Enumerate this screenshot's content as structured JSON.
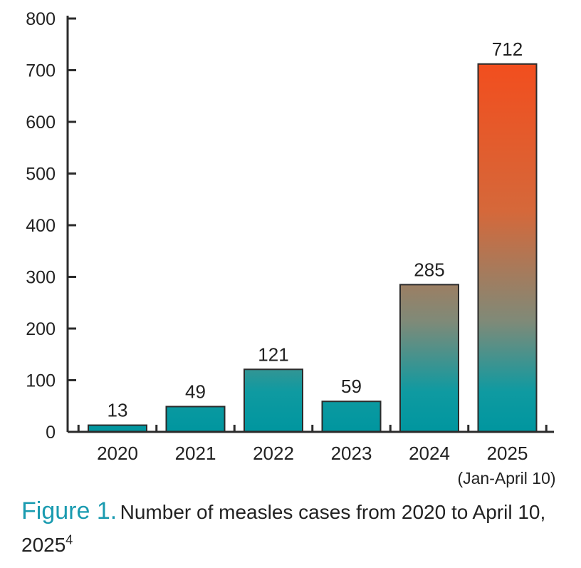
{
  "chart_data": {
    "type": "bar",
    "categories": [
      "2020",
      "2021",
      "2022",
      "2023",
      "2024",
      "2025"
    ],
    "category_sublabels": [
      "",
      "",
      "",
      "",
      "",
      "(Jan-April 10)"
    ],
    "values": [
      13,
      49,
      121,
      59,
      285,
      712
    ],
    "data_labels": [
      "13",
      "49",
      "121",
      "59",
      "285",
      "712"
    ],
    "ylim": [
      0,
      800
    ],
    "yticks": [
      0,
      100,
      200,
      300,
      400,
      500,
      600,
      700,
      800
    ],
    "xlabel": "",
    "ylabel": "",
    "grid": false,
    "colors": {
      "low": "#00969f",
      "high": "#f24e1e"
    }
  },
  "caption": {
    "label": "Figure 1.",
    "text": "Number of measles cases from 2020 to April 10, 2025",
    "superscript": "4"
  }
}
